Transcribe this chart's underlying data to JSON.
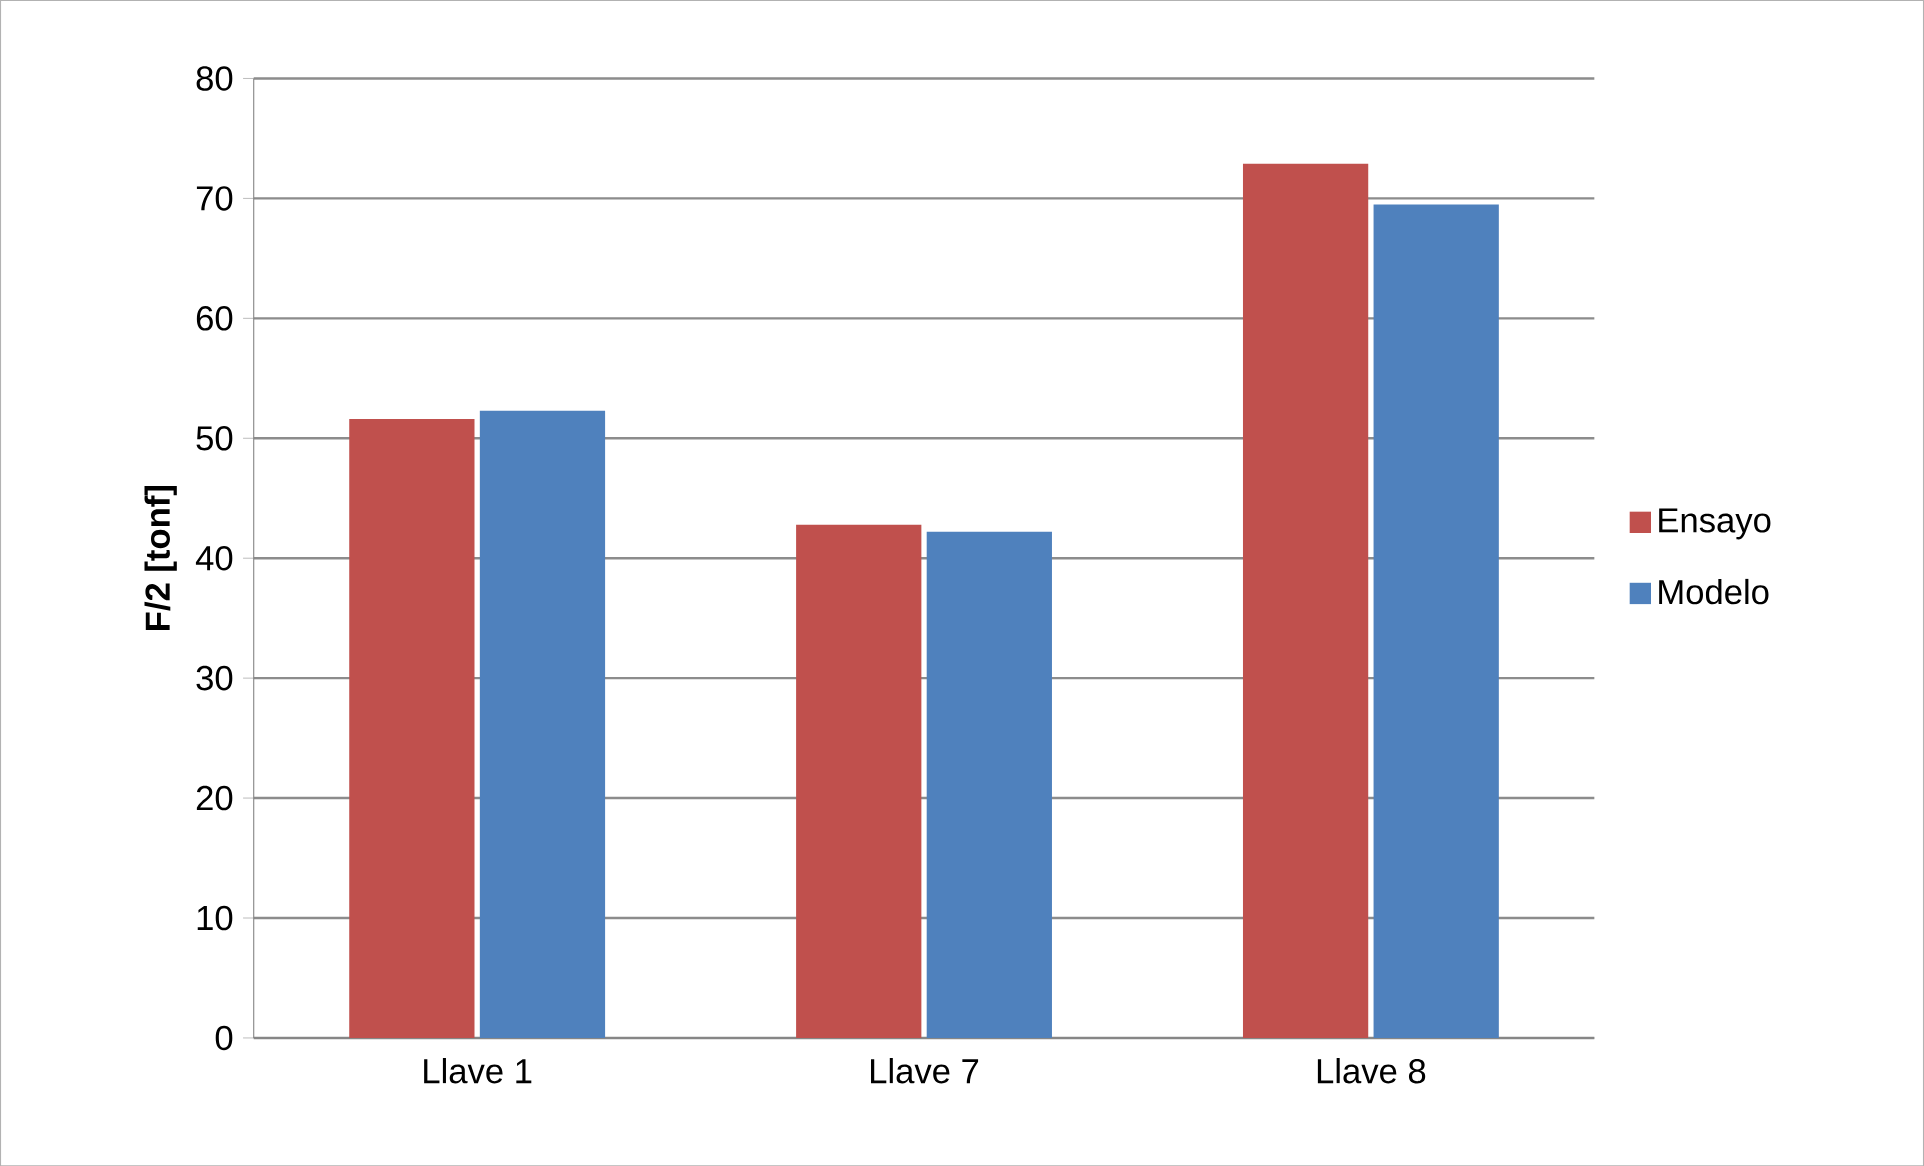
{
  "chart_data": {
    "type": "bar",
    "ylabel": "F/2 [tonf]",
    "categories": [
      "Llave 1",
      "Llave 7",
      "Llave 8"
    ],
    "series": [
      {
        "name": "Ensayo",
        "color": "#c0504d",
        "values": [
          51.6,
          42.8,
          72.9
        ]
      },
      {
        "name": "Modelo",
        "color": "#4f81bd",
        "values": [
          52.3,
          42.2,
          69.5
        ]
      }
    ],
    "ylim": [
      0,
      80
    ],
    "yticks": [
      0,
      10,
      20,
      30,
      40,
      50,
      60,
      70,
      80
    ],
    "grid": "y",
    "legend": "right"
  }
}
